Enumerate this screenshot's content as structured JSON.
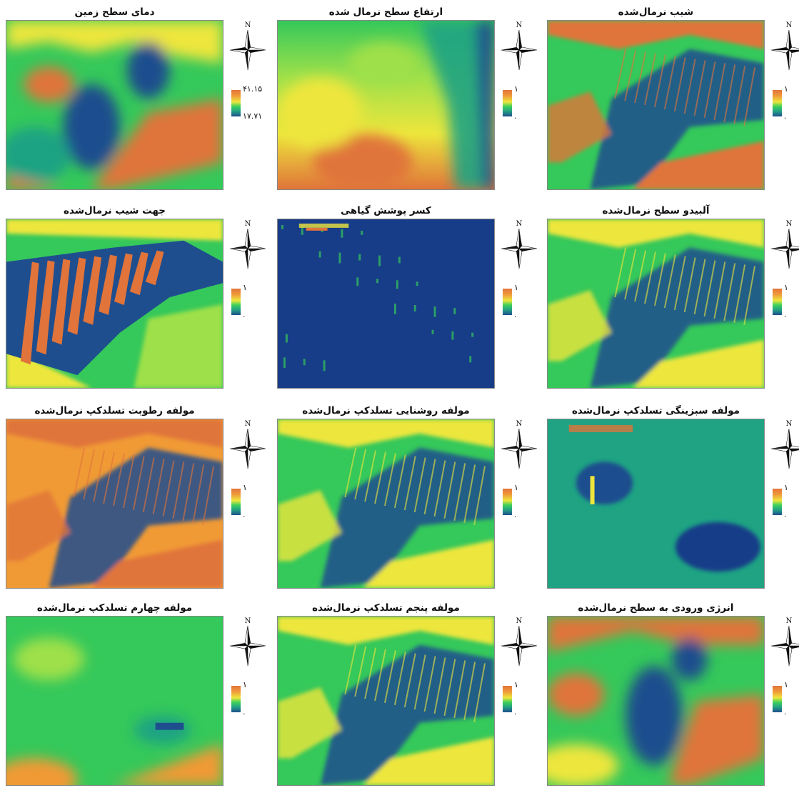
{
  "panels": [
    {
      "title": "دمای سطح زمین",
      "legend_max": "۴۱.۱۵",
      "legend_min": "۱۷.۷۱",
      "north": "N",
      "scheme": "lst"
    },
    {
      "title": "ارتفاع سطح نرمال شده",
      "legend_max": "۱",
      "legend_min": ".",
      "north": "N",
      "scheme": "dem"
    },
    {
      "title": "شیب نرمال‌شده",
      "legend_max": "۱",
      "legend_min": ".",
      "north": "N",
      "scheme": "slope"
    },
    {
      "title": "جهت شیب نرمال‌شده",
      "legend_max": "۱",
      "legend_min": ".",
      "north": "N",
      "scheme": "aspect"
    },
    {
      "title": "کسر پوشش گیاهی",
      "legend_max": "۱",
      "legend_min": ".",
      "north": "N",
      "scheme": "veg"
    },
    {
      "title": "آلبیدو سطح نرمال‌شده",
      "legend_max": "۱",
      "legend_min": ".",
      "north": "N",
      "scheme": "albedo"
    },
    {
      "title": "مولفه رطوبت تسلدکپ نرمال‌شده",
      "legend_max": "۱",
      "legend_min": ".",
      "north": "N",
      "scheme": "wet"
    },
    {
      "title": "مولفه روشنایی تسلدکپ نرمال‌شده",
      "legend_max": "۱",
      "legend_min": ".",
      "north": "N",
      "scheme": "bright"
    },
    {
      "title": "مولفه سبزینگی تسلدکپ نرمال‌شده",
      "legend_max": "۱",
      "legend_min": ".",
      "north": "N",
      "scheme": "green"
    },
    {
      "title": "مولفه چهارم تسلدکپ نرمال‌شده",
      "legend_max": "۱",
      "legend_min": ".",
      "north": "N",
      "scheme": "fourth"
    },
    {
      "title": "مولفه پنجم تسلدکپ نرمال‌شده",
      "legend_max": "۱",
      "legend_min": ".",
      "north": "N",
      "scheme": "fifth"
    },
    {
      "title": "انرژی ورودی به سطح نرمال‌شده",
      "legend_max": "۱",
      "legend_min": ".",
      "north": "N",
      "scheme": "energy"
    }
  ],
  "legend_colors": [
    "#e2743a",
    "#ede63c",
    "#3fd15a",
    "#1f4e8e"
  ]
}
